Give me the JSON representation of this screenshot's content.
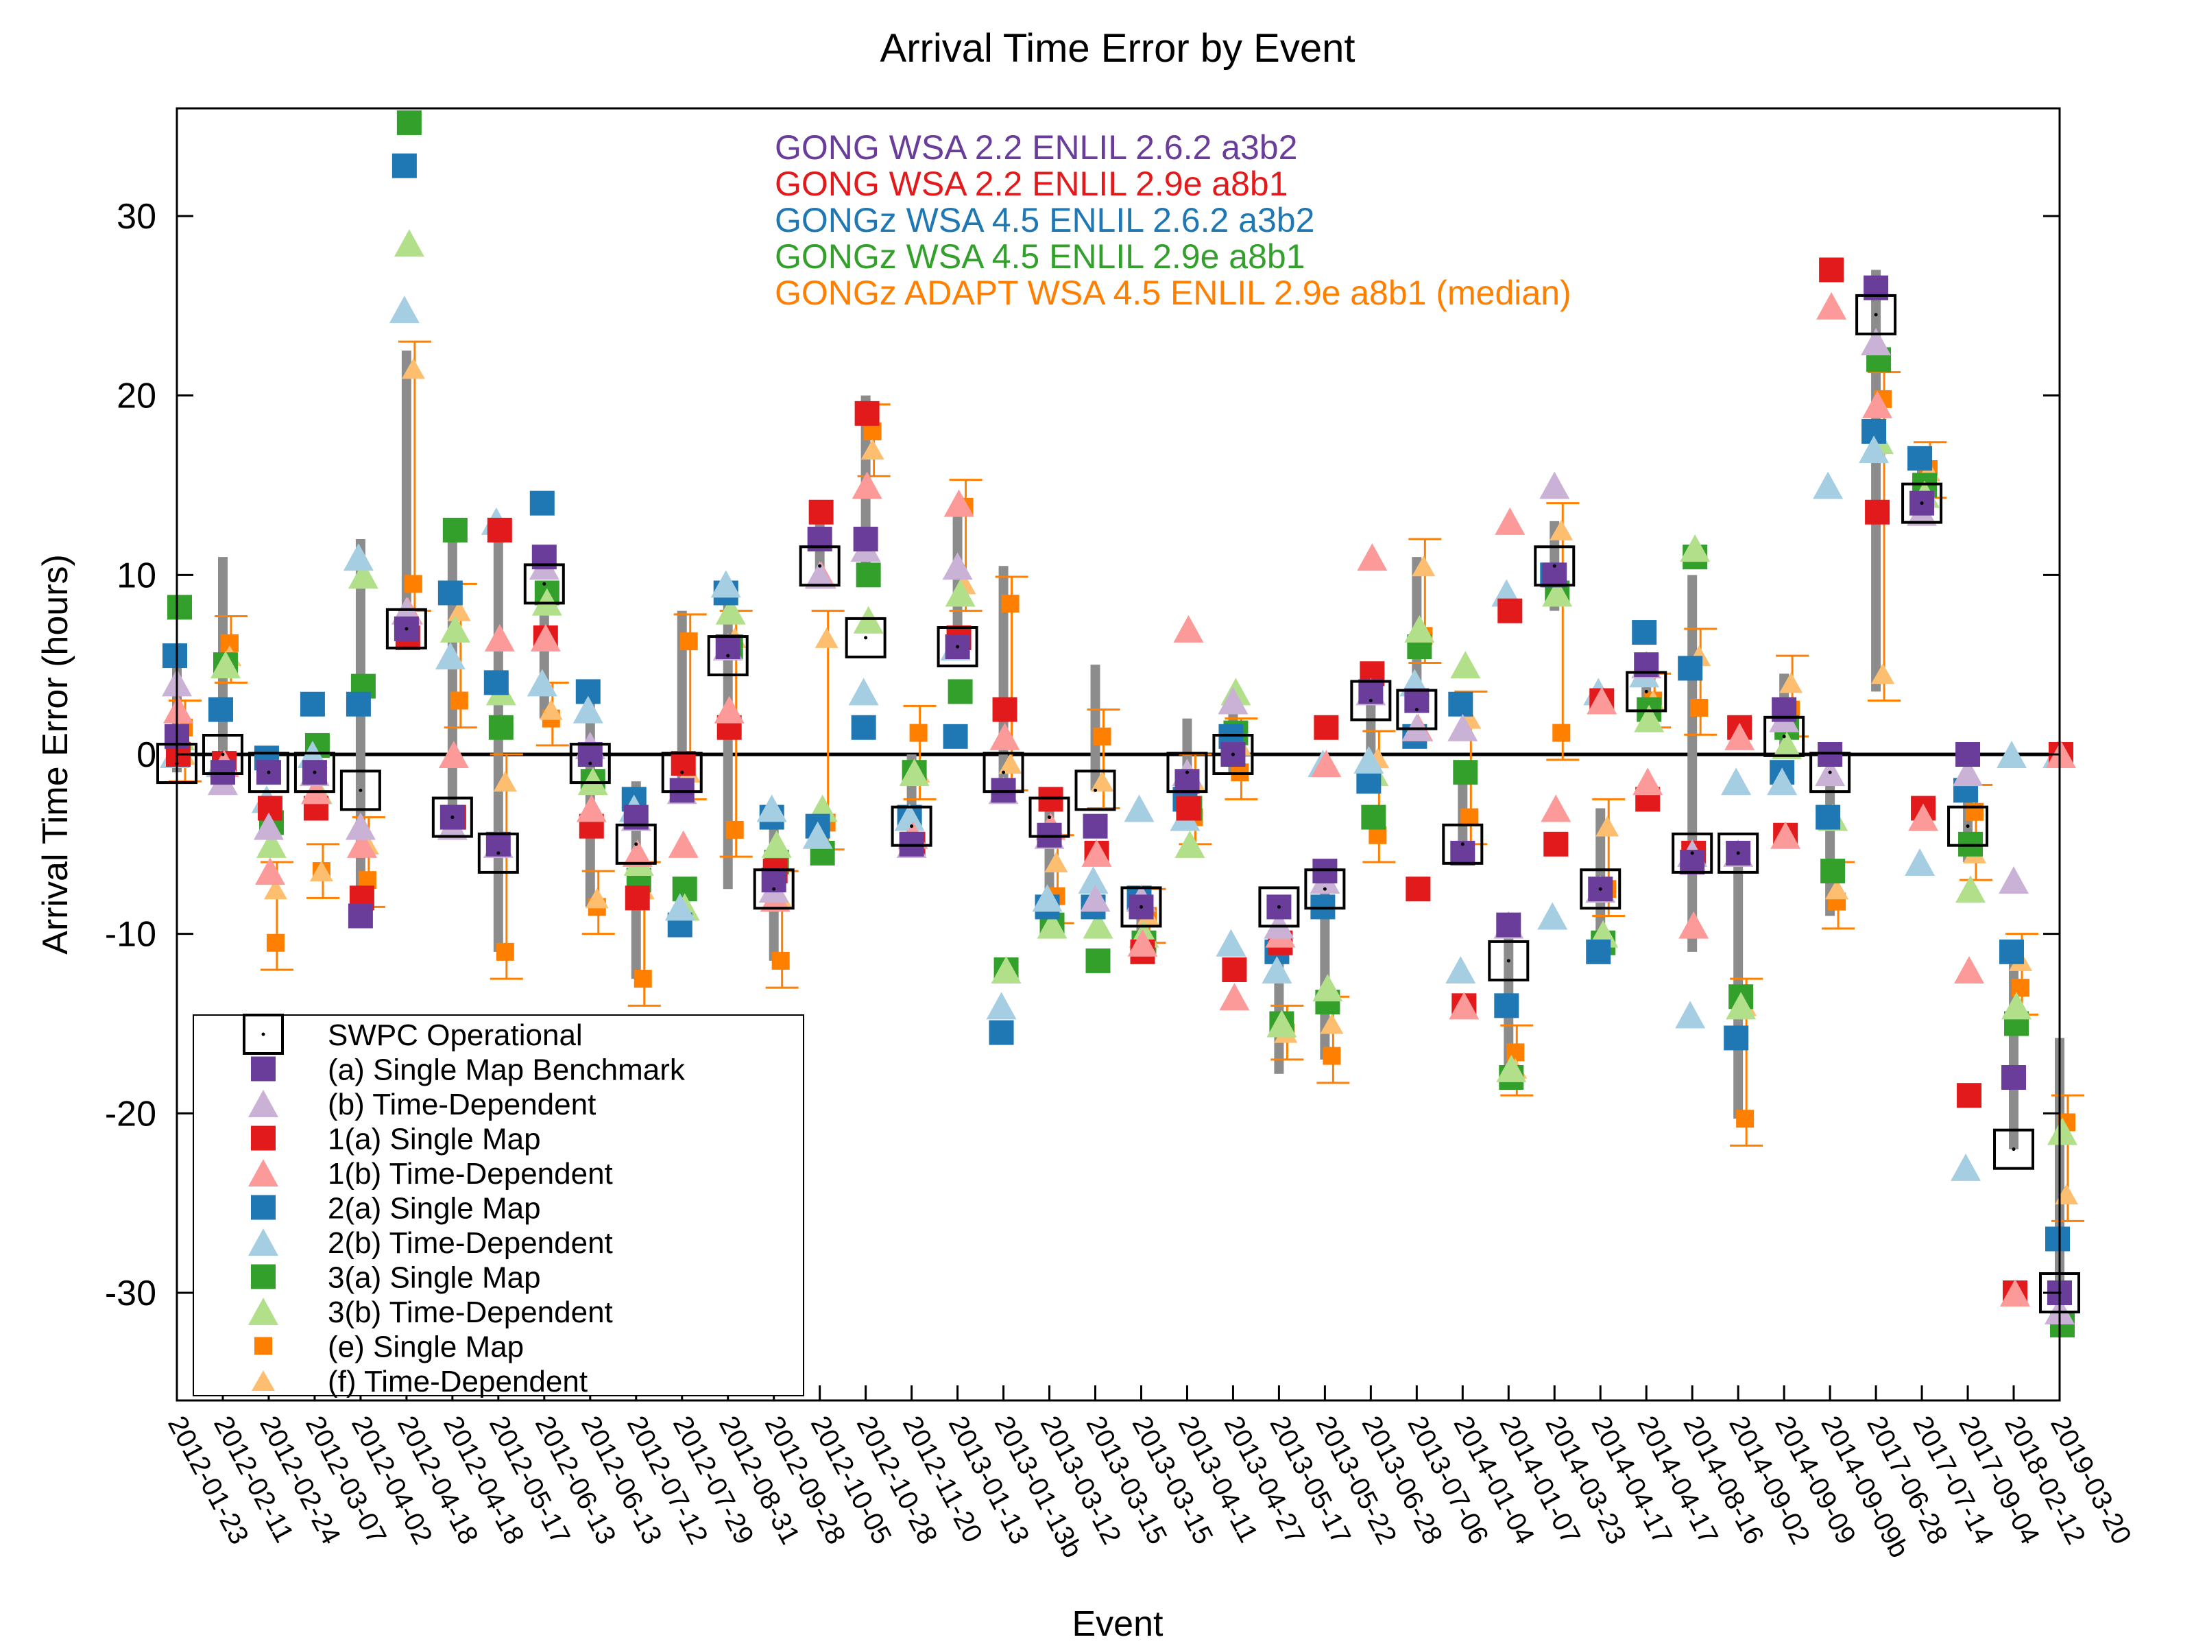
{
  "colors": {
    "swpc": "#000000",
    "a": "#6a3d9a",
    "b": "#cab2d6",
    "1a": "#e31a1c",
    "1b": "#fb9a99",
    "2a": "#1f78b4",
    "2b": "#a6cee3",
    "3a": "#33a02c",
    "3b": "#b2df8a",
    "e": "#ff7f00",
    "f": "#fdbf6f",
    "range": "#8c8c8c",
    "zero": "#000000"
  },
  "chart_data": {
    "type": "scatter",
    "title": "Arrival Time Error by Event",
    "xlabel": "Event",
    "ylabel": "Arrival Time Error (hours)",
    "ylim": [
      -36,
      36
    ],
    "yticks": [
      -30,
      -20,
      -10,
      0,
      10,
      20,
      30
    ],
    "grid": false,
    "legend_position": "bottom-left",
    "annotations": [
      {
        "text": "GONG WSA 2.2 ENLIL 2.6.2 a3b2",
        "color": "#6a3d9a"
      },
      {
        "text": "GONG WSA 2.2 ENLIL 2.9e a8b1",
        "color": "#e31a1c"
      },
      {
        "text": "GONGz WSA 4.5 ENLIL 2.6.2 a3b2",
        "color": "#1f78b4"
      },
      {
        "text": "GONGz WSA 4.5 ENLIL 2.9e a8b1",
        "color": "#33a02c"
      },
      {
        "text": "GONGz ADAPT WSA 4.5 ENLIL 2.9e a8b1 (median)",
        "color": "#ff7f00"
      }
    ],
    "categories": [
      "2012-01-23",
      "2012-02-11",
      "2012-02-24",
      "2012-03-07",
      "2012-04-02",
      "2012-04-18",
      "2012-04-18",
      "2012-05-17",
      "2012-06-13",
      "2012-06-13",
      "2012-07-12",
      "2012-07-29",
      "2012-08-31",
      "2012-09-28",
      "2012-10-05",
      "2012-10-28",
      "2012-11-20",
      "2013-01-13",
      "2013-01-13b",
      "2013-03-12",
      "2013-03-15",
      "2013-03-15",
      "2013-04-11",
      "2013-04-27",
      "2013-05-17",
      "2013-05-22",
      "2013-06-28",
      "2013-07-06",
      "2014-01-04",
      "2014-01-07",
      "2014-03-23",
      "2014-04-17",
      "2014-04-17",
      "2014-08-16",
      "2014-09-02",
      "2014-09-09",
      "2014-09-09b",
      "2017-06-28",
      "2017-07-14",
      "2017-09-04",
      "2018-02-12",
      "2019-03-20"
    ],
    "series": [
      {
        "key": "swpc",
        "name": "SWPC Operational",
        "marker": "open-square",
        "values": [
          -0.5,
          0,
          -1,
          -1,
          -2,
          7,
          -3.5,
          -5.5,
          9.5,
          -0.5,
          -5,
          -1,
          5.5,
          -7.5,
          10.5,
          6.5,
          -4,
          6,
          -1,
          -3.5,
          -2,
          -8.5,
          -1,
          0,
          -8.5,
          -7.5,
          3,
          2.5,
          -5,
          -11.5,
          10.5,
          -7.5,
          3.5,
          -5.5,
          -5.5,
          1,
          -1,
          24.5,
          14,
          -4,
          -22,
          -30
        ]
      },
      {
        "key": "a",
        "name": "(a) Single Map Benchmark",
        "marker": "square",
        "values": [
          1,
          -1,
          -1,
          -1,
          -9,
          7,
          -3.5,
          -5,
          11,
          0,
          -3.5,
          -2,
          6,
          -7,
          12,
          12,
          -5,
          6,
          -2,
          -4.5,
          -4,
          -8.5,
          -1.5,
          0,
          -8.5,
          -6.5,
          3.5,
          3,
          -5.5,
          -9.5,
          10,
          -7.5,
          5,
          -6,
          -5.5,
          2.5,
          0,
          26,
          14,
          0,
          -18,
          -30
        ]
      },
      {
        "key": "b",
        "name": "(b) Time-Dependent",
        "marker": "triangle",
        "values": [
          4,
          -1.5,
          -4,
          -1,
          -4,
          8,
          -4,
          -5,
          10.5,
          0.5,
          -3.5,
          -2,
          6,
          -7.5,
          10,
          11.5,
          -5,
          10.5,
          -2,
          -4.5,
          -8,
          -8,
          -1,
          3,
          -9.5,
          -7,
          3.5,
          1.5,
          1.5,
          -9.5,
          15,
          -7.5,
          5,
          -5.5,
          -5.5,
          2,
          -1,
          23,
          13.5,
          -1,
          -7,
          -31
        ]
      },
      {
        "key": "1a",
        "name": "1(a) Single Map",
        "marker": "square",
        "values": [
          0,
          -0.5,
          -3,
          -3,
          -8,
          6.5,
          -3.5,
          12.5,
          6.5,
          -4,
          -8,
          -0.5,
          1.5,
          -6.5,
          13.5,
          19,
          -5,
          6.5,
          2.5,
          -2.5,
          -5.5,
          -11,
          -3,
          -12,
          -10.5,
          1.5,
          4.5,
          -7.5,
          -14,
          8,
          -5,
          3,
          -2.5,
          -5.5,
          1.5,
          -4.5,
          27,
          13.5,
          -3,
          -19,
          -30,
          0
        ]
      },
      {
        "key": "1b",
        "name": "1(b) Time-Dependent",
        "marker": "triangle",
        "values": [
          2.5,
          -0.5,
          -6.5,
          -2,
          -5,
          8,
          0,
          6.5,
          6.5,
          -3,
          -5.5,
          -5,
          2.5,
          -8,
          10,
          15,
          -4.5,
          14,
          1,
          -4,
          -5.5,
          -10.5,
          7,
          -13.5,
          -10,
          -0.5,
          11,
          1.5,
          -14,
          13,
          -3,
          3,
          -1.5,
          -9.5,
          1,
          -4.5,
          25,
          19.5,
          -3.5,
          -12,
          -30,
          0
        ]
      },
      {
        "key": "2a",
        "name": "2(a) Single Map",
        "marker": "square",
        "values": [
          5.5,
          2.5,
          -0.2,
          2.8,
          2.8,
          32.8,
          9,
          4,
          14,
          3.5,
          -2.5,
          -9.5,
          9,
          -3.5,
          -4,
          1.5,
          -3.5,
          1,
          -15.5,
          -8.5,
          -8.5,
          -8,
          -2.5,
          1,
          -11,
          -8.5,
          -1.5,
          1,
          2.8,
          -14,
          10,
          -11,
          6.8,
          4.8,
          -15.8,
          -1,
          -3.5,
          18,
          16.5,
          -2,
          -11,
          -27
        ]
      },
      {
        "key": "2b",
        "name": "2(b) Time-Dependent",
        "marker": "triangle",
        "values": [
          0,
          -0.5,
          -2.5,
          0,
          11,
          24.8,
          5.5,
          13,
          4,
          2.5,
          -3,
          -8.5,
          9.5,
          -3,
          -4.5,
          3.5,
          -3.5,
          6,
          -14,
          -8,
          -7,
          -3,
          -3.5,
          -10.5,
          -12,
          -0.5,
          -0.3,
          4,
          -12,
          9,
          -9,
          3.5,
          4.5,
          -14.5,
          -1.5,
          -1.5,
          15,
          17,
          -6,
          -23,
          0,
          0
        ]
      },
      {
        "key": "3a",
        "name": "3(a) Single Map",
        "marker": "square",
        "values": [
          8.2,
          5,
          -3.8,
          0.5,
          3.8,
          35.2,
          12.5,
          1.5,
          9,
          -1.5,
          -7,
          -7.5,
          6,
          -6,
          -5.5,
          10,
          -1,
          3.5,
          -12,
          -9.5,
          -11.5,
          -10.5,
          -3,
          1.2,
          -15,
          -13.8,
          -3.5,
          6,
          -1,
          -18,
          9,
          -10.5,
          2.5,
          11,
          -13.5,
          1.5,
          -6.5,
          22,
          15,
          -5,
          -15,
          -31.8
        ]
      },
      {
        "key": "3b",
        "name": "3(b) Time-Dependent",
        "marker": "triangle",
        "values": [
          1,
          5,
          -5,
          -2,
          10,
          28.5,
          7,
          3.5,
          8.5,
          -1.5,
          -6,
          -8.5,
          8,
          -5,
          -3,
          7.5,
          -1,
          9,
          -12,
          -9.5,
          -9.5,
          -10,
          -5,
          3.5,
          -15,
          -13,
          -1,
          7,
          5,
          -17.5,
          9,
          -10,
          2,
          11.5,
          -14,
          0.5,
          -3.5,
          17.5,
          14.5,
          -7.5,
          -14,
          -21
        ]
      },
      {
        "key": "e",
        "name": "(e) Single Map",
        "marker": "small-square",
        "values": [
          1.5,
          6.2,
          -10.5,
          -6.5,
          -7,
          9.5,
          3,
          -11,
          2,
          -8.5,
          -12.5,
          6.3,
          -4.2,
          -11.5,
          -3.8,
          18,
          1.2,
          13.8,
          8.4,
          -7.9,
          1,
          -9,
          -3.5,
          -1,
          -15.5,
          -16.8,
          -4.5,
          6.6,
          -3.5,
          -16.6,
          1.2,
          -7.5,
          3,
          2.6,
          -20.3,
          2.5,
          -8.2,
          19.8,
          15.9,
          -3.2,
          -13,
          -20.5
        ]
      },
      {
        "key": "f",
        "name": "(f) Time-Dependent",
        "marker": "small-triangle",
        "values": [
          0,
          5.5,
          -7.5,
          -6.5,
          -5,
          21.5,
          8,
          -1.5,
          2.5,
          -8,
          -7.5,
          -1,
          6.5,
          -8,
          6.5,
          17,
          -1,
          9.5,
          -0.5,
          -6,
          -1.5,
          -9,
          -1.5,
          0.5,
          -15.5,
          -15,
          -0.2,
          10.5,
          2,
          -17.5,
          12.5,
          -4,
          3,
          5.5,
          -14,
          4,
          -7.5,
          4.5,
          15.8,
          -5.5,
          -11.5,
          -24.5
        ]
      }
    ],
    "median_range": [
      [
        -1,
        5
      ],
      [
        -1,
        11
      ],
      [
        -1,
        -1
      ],
      [
        -1,
        -1
      ],
      [
        -9,
        12
      ],
      [
        6.5,
        22.5
      ],
      [
        -4,
        12.5
      ],
      [
        -11,
        13
      ],
      [
        2,
        9.5
      ],
      [
        -8.5,
        3
      ],
      [
        -12.5,
        -1.5
      ],
      [
        -2,
        8
      ],
      [
        -7.5,
        9
      ],
      [
        -11.5,
        -3
      ],
      [
        9.5,
        13.5
      ],
      [
        10,
        20
      ],
      [
        -5,
        0
      ],
      [
        6,
        13.8
      ],
      [
        -2,
        10.5
      ],
      [
        -8,
        -2
      ],
      [
        -2,
        5
      ],
      [
        -11,
        -8
      ],
      [
        -3,
        2
      ],
      [
        -1,
        3.5
      ],
      [
        -17.8,
        -8.5
      ],
      [
        -17,
        -6.5
      ],
      [
        -1.5,
        3.5
      ],
      [
        2.5,
        11
      ],
      [
        -5.5,
        -0.5
      ],
      [
        -18,
        -10
      ],
      [
        8,
        13
      ],
      [
        -11,
        -3
      ],
      [
        3,
        5
      ],
      [
        -11,
        10
      ],
      [
        -20.3,
        -5.5
      ],
      [
        0.5,
        4.5
      ],
      [
        -9,
        -1
      ],
      [
        3.5,
        27
      ],
      [
        13.5,
        17
      ],
      [
        -6,
        -2
      ],
      [
        -22,
        -11
      ],
      [
        -31.8,
        -15.8
      ]
    ]
  }
}
